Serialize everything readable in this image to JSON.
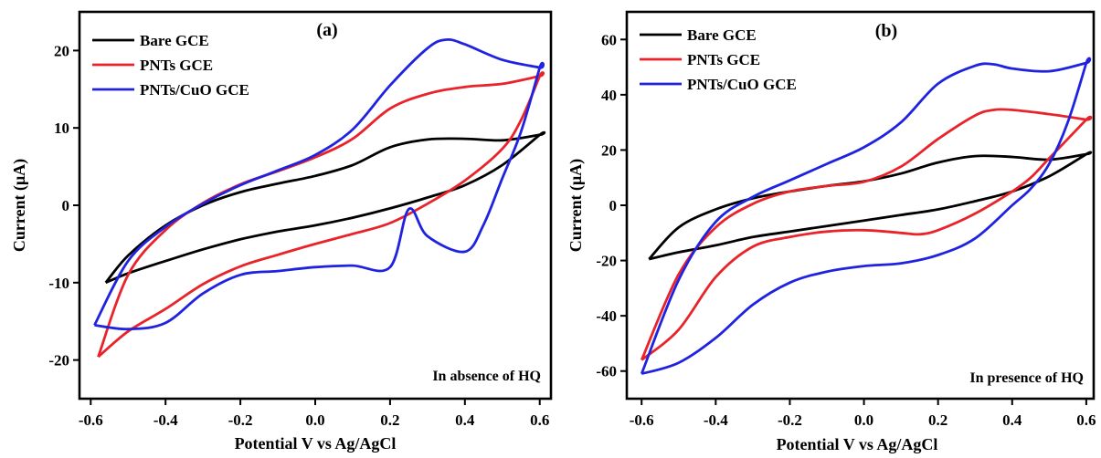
{
  "chart_data": [
    {
      "type": "line",
      "panel_label": "(a)",
      "annotation": "In absence of HQ",
      "xlabel": "Potential V vs Ag/AgCl",
      "ylabel": "Current (μA)",
      "xlim": [
        -0.63,
        0.63
      ],
      "ylim": [
        -25,
        25
      ],
      "xticks": [
        -0.6,
        -0.4,
        -0.2,
        0.0,
        0.2,
        0.4,
        0.6
      ],
      "xtick_labels": [
        "-0.6",
        "-0.4",
        "-0.2",
        "0.0",
        "0.2",
        "0.4",
        "0.6"
      ],
      "yticks": [
        -20,
        -10,
        0,
        10,
        20
      ],
      "ytick_labels": [
        "-20",
        "-10",
        "0",
        "10",
        "20"
      ],
      "legend_position": "top-left",
      "series": [
        {
          "name": "Bare GCE",
          "color": "#000000",
          "x": [
            -0.56,
            -0.5,
            -0.4,
            -0.3,
            -0.2,
            -0.1,
            0.0,
            0.1,
            0.2,
            0.3,
            0.4,
            0.5,
            0.6,
            0.6,
            0.5,
            0.4,
            0.3,
            0.2,
            0.1,
            0.0,
            -0.1,
            -0.2,
            -0.3,
            -0.4,
            -0.5,
            -0.56
          ],
          "y": [
            -10,
            -6.5,
            -2.6,
            0,
            1.7,
            2.8,
            3.8,
            5.2,
            7.5,
            8.5,
            8.6,
            8.4,
            9.1,
            9.1,
            5.2,
            2.6,
            1.0,
            -0.4,
            -1.6,
            -2.6,
            -3.4,
            -4.4,
            -5.7,
            -7.2,
            -8.8,
            -10
          ]
        },
        {
          "name": "PNTs GCE",
          "color": "#e8232a",
          "x": [
            -0.58,
            -0.5,
            -0.4,
            -0.3,
            -0.2,
            -0.1,
            0.0,
            0.1,
            0.2,
            0.3,
            0.4,
            0.5,
            0.6,
            0.6,
            0.55,
            0.5,
            0.4,
            0.3,
            0.2,
            0.1,
            0.0,
            -0.1,
            -0.2,
            -0.3,
            -0.4,
            -0.5,
            -0.58
          ],
          "y": [
            -19.6,
            -9.0,
            -3.2,
            0.3,
            2.7,
            4.4,
            6.2,
            8.6,
            12.5,
            14.4,
            15.3,
            15.7,
            16.7,
            16.7,
            11.0,
            7.3,
            3.2,
            0.2,
            -2.3,
            -3.7,
            -5.0,
            -6.4,
            -7.9,
            -10.2,
            -13.4,
            -16.3,
            -19.6
          ]
        },
        {
          "name": "PNTs/CuO GCE",
          "color": "#1f23e0",
          "x": [
            -0.59,
            -0.5,
            -0.4,
            -0.3,
            -0.2,
            -0.1,
            0.0,
            0.1,
            0.2,
            0.3,
            0.35,
            0.4,
            0.5,
            0.6,
            0.6,
            0.55,
            0.5,
            0.45,
            0.4,
            0.3,
            0.25,
            0.2,
            0.1,
            0.0,
            -0.1,
            -0.2,
            -0.3,
            -0.4,
            -0.5,
            -0.59
          ],
          "y": [
            -15.5,
            -7.2,
            -2.8,
            0.2,
            2.6,
            4.5,
            6.5,
            9.8,
            15.5,
            20.3,
            21.4,
            20.8,
            18.8,
            17.8,
            17.8,
            9.5,
            3.5,
            -2.5,
            -6.0,
            -4.0,
            -0.5,
            -8.0,
            -7.8,
            -8.0,
            -8.5,
            -9.0,
            -11.4,
            -15.2,
            -16.0,
            -15.5
          ]
        }
      ]
    },
    {
      "type": "line",
      "panel_label": "(b)",
      "annotation": "In presence of HQ",
      "xlabel": "Potential V vs Ag/AgCl",
      "ylabel": "Current (μA)",
      "xlim": [
        -0.64,
        0.62
      ],
      "ylim": [
        -70,
        70
      ],
      "xticks": [
        -0.6,
        -0.4,
        -0.2,
        0.0,
        0.2,
        0.4,
        0.6
      ],
      "xtick_labels": [
        "-0.6",
        "-0.4",
        "-0.2",
        "0.0",
        "0.2",
        "0.4",
        "0.6"
      ],
      "yticks": [
        -60,
        -40,
        -20,
        0,
        20,
        40,
        60
      ],
      "ytick_labels": [
        "-60",
        "-40",
        "-20",
        "0",
        "20",
        "40",
        "60"
      ],
      "legend_position": "top-left",
      "series": [
        {
          "name": "Bare GCE",
          "color": "#000000",
          "x": [
            -0.58,
            -0.5,
            -0.4,
            -0.3,
            -0.2,
            -0.1,
            0.0,
            0.1,
            0.2,
            0.3,
            0.4,
            0.5,
            0.6,
            0.6,
            0.5,
            0.4,
            0.3,
            0.2,
            0.1,
            0.0,
            -0.1,
            -0.2,
            -0.3,
            -0.4,
            -0.5,
            -0.58
          ],
          "y": [
            -19.5,
            -8,
            -1.5,
            2.5,
            5,
            7,
            8.7,
            11.5,
            15.5,
            17.8,
            17.5,
            16.5,
            18.5,
            18.5,
            10.5,
            5,
            1.5,
            -1.5,
            -3.5,
            -5.5,
            -7.5,
            -9.5,
            -11.5,
            -14.5,
            -17,
            -19.5
          ]
        },
        {
          "name": "PNTs GCE",
          "color": "#e8232a",
          "x": [
            -0.6,
            -0.5,
            -0.4,
            -0.3,
            -0.2,
            -0.1,
            0.0,
            0.1,
            0.2,
            0.3,
            0.35,
            0.4,
            0.5,
            0.6,
            0.6,
            0.5,
            0.45,
            0.4,
            0.3,
            0.2,
            0.15,
            0.1,
            0.0,
            -0.1,
            -0.2,
            -0.3,
            -0.4,
            -0.5,
            -0.6
          ],
          "y": [
            -56,
            -25,
            -8,
            0.5,
            5,
            7,
            8.5,
            14,
            24,
            32.5,
            34.5,
            34.5,
            33,
            31,
            31,
            17,
            10,
            5,
            -3,
            -9,
            -10.5,
            -10,
            -9,
            -9.5,
            -11.5,
            -15,
            -26,
            -45,
            -56
          ]
        },
        {
          "name": "PNTs/CuO GCE",
          "color": "#1f23e0",
          "x": [
            -0.6,
            -0.5,
            -0.4,
            -0.3,
            -0.2,
            -0.1,
            0.0,
            0.1,
            0.2,
            0.3,
            0.35,
            0.4,
            0.5,
            0.6,
            0.6,
            0.55,
            0.5,
            0.45,
            0.4,
            0.3,
            0.2,
            0.1,
            0.0,
            -0.1,
            -0.2,
            -0.3,
            -0.4,
            -0.5,
            -0.6
          ],
          "y": [
            -61,
            -27,
            -6,
            3,
            9,
            15,
            21,
            30,
            44,
            50.5,
            51,
            49.5,
            48.5,
            51.5,
            51.5,
            30,
            15,
            6,
            0,
            -12,
            -18,
            -21,
            -22,
            -24,
            -28,
            -36,
            -48,
            -57,
            -61
          ]
        }
      ]
    }
  ]
}
